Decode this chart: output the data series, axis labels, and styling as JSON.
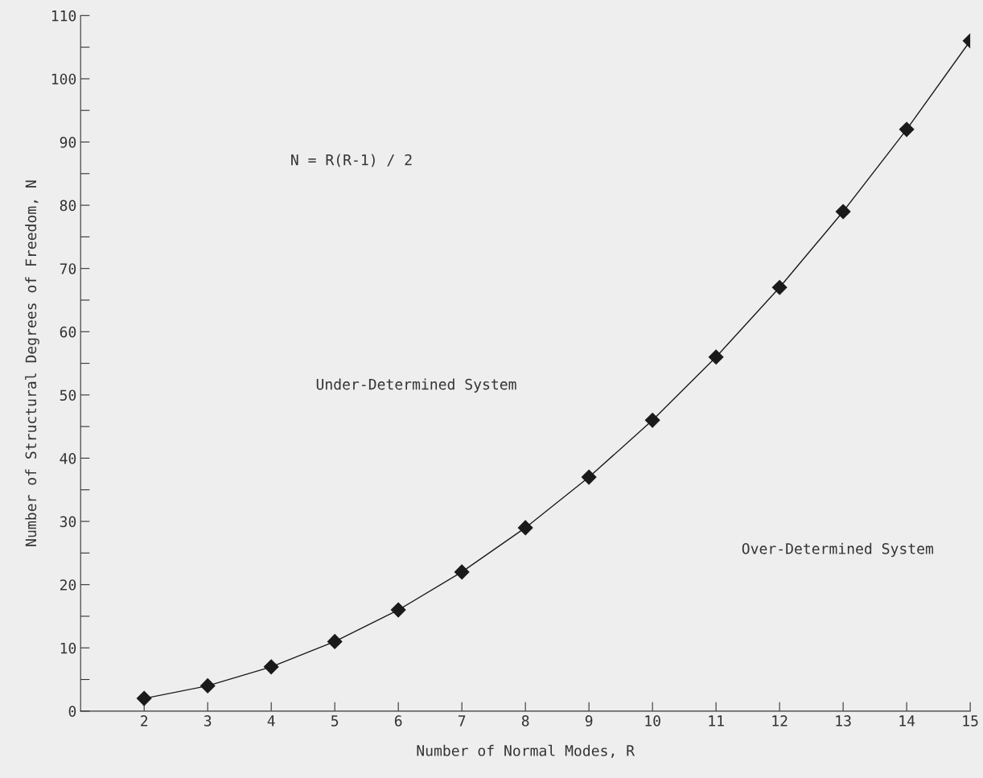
{
  "chart_data": {
    "type": "line",
    "xlabel": "Number of Normal Modes, R",
    "ylabel": "Number of Structural Degrees of Freedom, N",
    "x": [
      2,
      3,
      4,
      5,
      6,
      7,
      8,
      9,
      10,
      11,
      12,
      13,
      14,
      15
    ],
    "series": [
      {
        "color": "#1a1a1a",
        "values": [
          2,
          4,
          7,
          11,
          16,
          22,
          29,
          37,
          46,
          56,
          67,
          79,
          92,
          106
        ]
      }
    ],
    "marker": "diamond",
    "line_style": "solid",
    "grid": false,
    "xlim": [
      1,
      15
    ],
    "xticks": [
      2,
      3,
      4,
      5,
      6,
      7,
      8,
      9,
      10,
      11,
      12,
      13,
      14,
      15
    ],
    "ylim": [
      0,
      110
    ],
    "yticks": [
      0,
      {
        "value": 5,
        "label": null
      },
      10,
      {
        "value": 15,
        "label": null
      },
      20,
      {
        "value": 25,
        "label": null
      },
      30,
      {
        "value": 35,
        "label": null
      },
      40,
      {
        "value": 45,
        "label": null
      },
      50,
      {
        "value": 55,
        "label": null
      },
      60,
      {
        "value": 65,
        "label": null
      },
      70,
      {
        "value": 75,
        "label": null
      },
      80,
      {
        "value": 85,
        "label": null
      },
      90,
      {
        "value": 95,
        "label": null
      },
      100,
      {
        "value": 105,
        "label": null
      },
      110
    ],
    "annotations": [
      "N = R(R-1) / 2",
      "Under-Determined System",
      "Over-Determined System"
    ]
  }
}
